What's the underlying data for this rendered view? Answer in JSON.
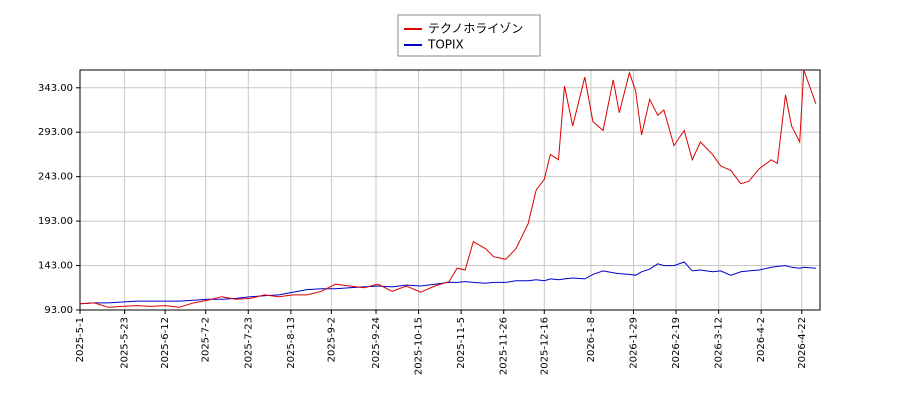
{
  "chart_data": {
    "type": "line",
    "x": [
      "2025-5-1",
      "2025-5-8",
      "2025-5-15",
      "2025-5-22",
      "2025-5-29",
      "2025-6-5",
      "2025-6-12",
      "2025-6-19",
      "2025-6-26",
      "2025-7-3",
      "2025-7-10",
      "2025-7-17",
      "2025-7-24",
      "2025-7-31",
      "2025-8-7",
      "2025-8-14",
      "2025-8-21",
      "2025-8-28",
      "2025-9-4",
      "2025-9-11",
      "2025-9-18",
      "2025-9-25",
      "2025-10-2",
      "2025-10-9",
      "2025-10-16",
      "2025-10-23",
      "2025-10-30",
      "2025-11-3",
      "2025-11-7",
      "2025-11-11",
      "2025-11-17",
      "2025-11-21",
      "2025-11-27",
      "2025-12-2",
      "2025-12-8",
      "2025-12-12",
      "2025-12-16",
      "2025-12-19",
      "2025-12-23",
      "2025-12-26",
      "2025-12-30",
      "2026-1-5",
      "2026-1-9",
      "2026-1-14",
      "2026-1-19",
      "2026-1-22",
      "2026-1-27",
      "2026-1-30",
      "2026-2-2",
      "2026-2-6",
      "2026-2-10",
      "2026-2-13",
      "2026-2-18",
      "2026-2-23",
      "2026-2-27",
      "2026-3-3",
      "2026-3-9",
      "2026-3-13",
      "2026-3-18",
      "2026-3-23",
      "2026-3-27",
      "2026-4-1",
      "2026-4-7",
      "2026-4-10",
      "2026-4-14",
      "2026-4-17",
      "2026-4-21",
      "2026-4-23",
      "2026-4-29"
    ],
    "series": [
      {
        "name": "テクノホライゾン",
        "color": "#dd0000",
        "values": [
          100,
          101,
          96,
          97,
          98,
          97,
          98,
          96,
          101,
          104,
          108,
          105,
          106,
          110,
          108,
          110,
          110,
          114,
          122,
          120,
          118,
          122,
          114,
          120,
          113,
          120,
          125,
          140,
          138,
          170,
          162,
          153,
          150,
          162,
          190,
          228,
          240,
          268,
          262,
          345,
          300,
          355,
          305,
          295,
          352,
          315,
          360,
          340,
          290,
          330,
          312,
          318,
          278,
          295,
          262,
          282,
          268,
          255,
          250,
          235,
          238,
          252,
          262,
          258,
          335,
          300,
          282,
          363,
          325
        ]
      },
      {
        "name": "TOPIX",
        "color": "#0000cc",
        "values": [
          100,
          101,
          101,
          102,
          103,
          103,
          103,
          103,
          104,
          105,
          105,
          106,
          108,
          109,
          110,
          113,
          116,
          117,
          117,
          118,
          119,
          120,
          119,
          121,
          120,
          122,
          124,
          124,
          125,
          124,
          123,
          124,
          124,
          126,
          126,
          127,
          126,
          128,
          127,
          128,
          129,
          128,
          133,
          137,
          135,
          134,
          133,
          132,
          136,
          139,
          145,
          143,
          143,
          147,
          137,
          138,
          136,
          137,
          132,
          136,
          137,
          138,
          141,
          142,
          143,
          141,
          140,
          141,
          140
        ]
      }
    ],
    "xlim": [
      "2025-5-1",
      "2026-5-1"
    ],
    "xticks": [
      "2025-5-1",
      "2025-5-23",
      "2025-6-12",
      "2025-7-2",
      "2025-7-23",
      "2025-8-13",
      "2025-9-2",
      "2025-9-24",
      "2025-10-15",
      "2025-11-5",
      "2025-11-26",
      "2025-12-16",
      "2026-1-8",
      "2026-1-29",
      "2026-2-19",
      "2026-3-12",
      "2026-4-2",
      "2026-4-22"
    ],
    "ylim": [
      93,
      363
    ],
    "yticks": [
      {
        "value": 93,
        "label": "93.00"
      },
      {
        "value": 143,
        "label": "143.00"
      },
      {
        "value": 193,
        "label": "193.00"
      },
      {
        "value": 243,
        "label": "243.00"
      },
      {
        "value": 293,
        "label": "293.00"
      },
      {
        "value": 343,
        "label": "343.00"
      }
    ],
    "grid": true,
    "legend": "top"
  }
}
